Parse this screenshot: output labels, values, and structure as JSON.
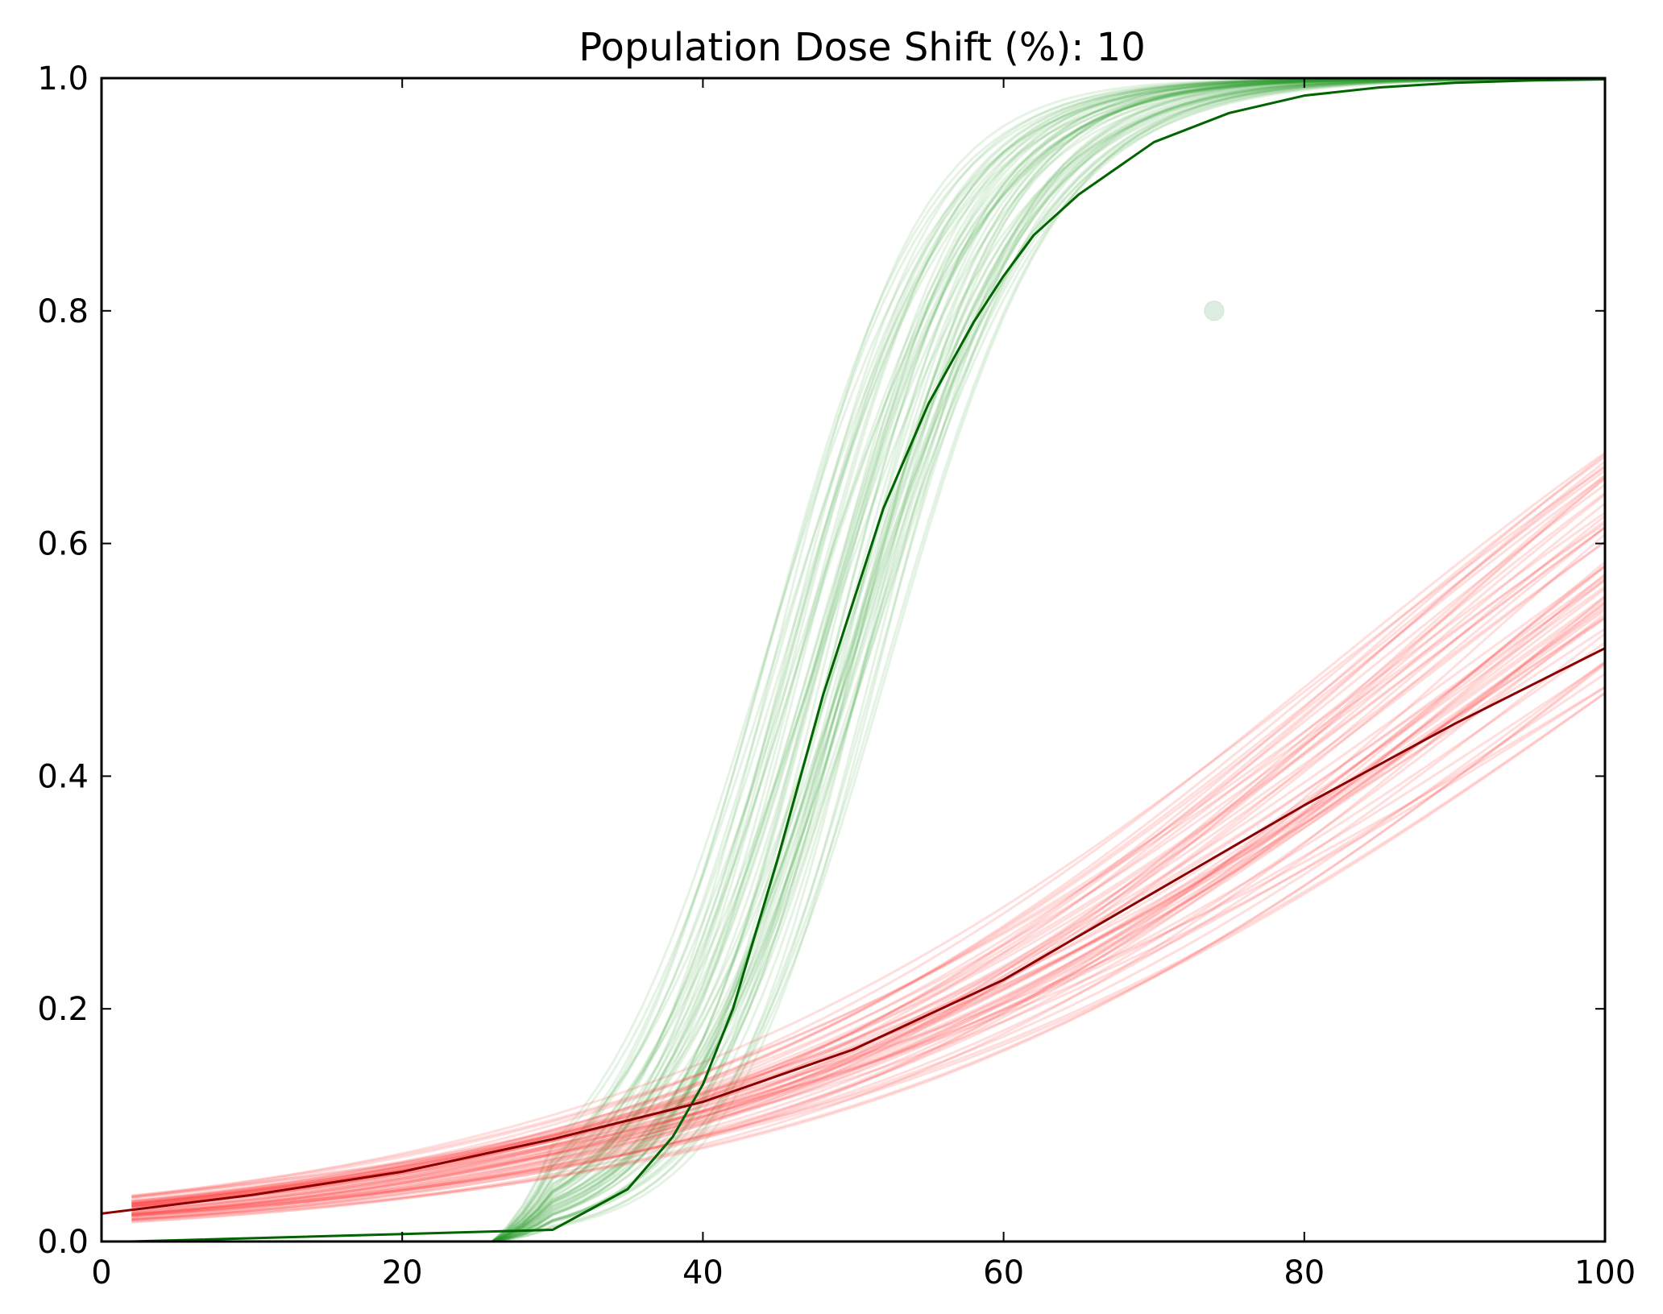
{
  "chart_data": {
    "type": "line",
    "title": "Population Dose Shift (%): 10",
    "xlabel": "",
    "ylabel": "",
    "xlim": [
      0,
      100
    ],
    "ylim": [
      0.0,
      1.0
    ],
    "x_ticks": [
      "0",
      "20",
      "40",
      "60",
      "80",
      "100"
    ],
    "y_ticks": [
      "0.0",
      "0.2",
      "0.4",
      "0.6",
      "0.8",
      "1.0"
    ],
    "grid": false,
    "legend": "none",
    "colors": {
      "green_band": "#2ca02c",
      "green_main": "#006400",
      "red_band": "#ff3030",
      "red_main": "#8b0000",
      "marker": "#cfe6d6"
    },
    "series": [
      {
        "role": "green-main",
        "model": "logistic",
        "x": [
          2,
          30,
          35,
          38,
          40,
          42,
          45,
          48,
          50,
          52,
          55,
          58,
          60,
          62,
          65,
          70,
          75,
          80,
          85,
          90,
          95,
          100
        ],
        "values": [
          0.0,
          0.01,
          0.045,
          0.09,
          0.135,
          0.2,
          0.33,
          0.47,
          0.55,
          0.63,
          0.72,
          0.79,
          0.83,
          0.865,
          0.9,
          0.945,
          0.97,
          0.985,
          0.992,
          0.996,
          0.998,
          0.999
        ]
      },
      {
        "role": "red-main",
        "model": "logistic",
        "x": [
          0,
          10,
          20,
          30,
          40,
          50,
          60,
          70,
          80,
          90,
          100
        ],
        "values": [
          0.024,
          0.04,
          0.06,
          0.088,
          0.12,
          0.165,
          0.225,
          0.3,
          0.375,
          0.445,
          0.51
        ]
      },
      {
        "role": "green-band",
        "count": 60,
        "midpoint_range": [
          44.0,
          52.5
        ],
        "slope_range": [
          0.15,
          0.21
        ]
      },
      {
        "role": "red-band",
        "count": 60,
        "intercept_at_2_range": [
          0.016,
          0.04
        ],
        "value_at_100_range": [
          0.47,
          0.68
        ]
      }
    ],
    "markers": [
      {
        "x": 74,
        "y": 0.8
      }
    ]
  }
}
